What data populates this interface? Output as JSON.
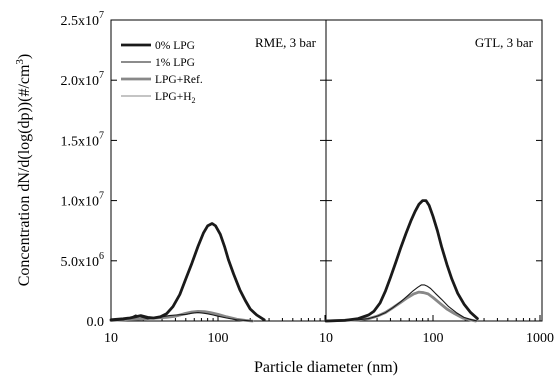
{
  "chart_data": {
    "type": "line",
    "xlabel": "Particle diameter (nm)",
    "ylabel": "Concentration dN/d(log(dp))(#/cm",
    "ylabel_sup": "3",
    "ylabel_end": ")",
    "xscale": "log",
    "xlim": [
      10,
      1000
    ],
    "ylim": [
      0,
      25000000
    ],
    "grid": false,
    "legend_position": "top-left",
    "y_ticks": [
      {
        "value": 0,
        "mant": "0.0",
        "exp": ""
      },
      {
        "value": 5000000,
        "mant": "5.0x10",
        "exp": "6"
      },
      {
        "value": 10000000,
        "mant": "1.0x10",
        "exp": "7"
      },
      {
        "value": 15000000,
        "mant": "1.5x10",
        "exp": "7"
      },
      {
        "value": 20000000,
        "mant": "2.0x10",
        "exp": "7"
      },
      {
        "value": 25000000,
        "mant": "2.5x10",
        "exp": "7"
      }
    ],
    "x_tick_labels": {
      "left": [
        {
          "value": 10,
          "text": "10"
        },
        {
          "value": 100,
          "text": "100"
        }
      ],
      "right": [
        {
          "value": 10,
          "text": "10"
        },
        {
          "value": 100,
          "text": "100"
        },
        {
          "value": 1000,
          "text": "1000"
        }
      ]
    },
    "legend": [
      {
        "text": "0% LPG",
        "sub": "",
        "color": "#1a1a1a",
        "width": 2.8
      },
      {
        "text": "1% LPG",
        "sub": "",
        "color": "#1a1a1a",
        "width": 1.1
      },
      {
        "text": "LPG+Ref.",
        "sub": "",
        "color": "#888888",
        "width": 2.8
      },
      {
        "text": "LPG+H",
        "sub": "2",
        "color": "#888888",
        "width": 1.1
      }
    ],
    "panels": [
      {
        "label": "RME, 3 bar",
        "series": [
          {
            "name": "0% LPG",
            "x": [
              10,
              11,
              13,
              15,
              17,
              19,
              22,
              25,
              29,
              33,
              38,
              44,
              50,
              57,
              65,
              73,
              80,
              88,
              95,
              105,
              115,
              125,
              140,
              160,
              180,
              200,
              230,
              270
            ],
            "y": [
              100000,
              130000,
              180000,
              250000,
              350000,
              450000,
              300000,
              250000,
              350000,
              600000,
              1200000,
              2200000,
              3500000,
              4800000,
              6200000,
              7300000,
              7900000,
              8100000,
              7900000,
              7200000,
              6200000,
              5100000,
              3900000,
              2600000,
              1700000,
              1000000,
              500000,
              100000
            ]
          },
          {
            "name": "1% LPG",
            "x": [
              10,
              13,
              15,
              17,
              19,
              22,
              25,
              30,
              35,
              40,
              50,
              57,
              65,
              73,
              80,
              90,
              100,
              120,
              150,
              180,
              210
            ],
            "y": [
              0,
              80000,
              250000,
              500000,
              350000,
              180000,
              250000,
              350000,
              450000,
              500000,
              550000,
              650000,
              700000,
              650000,
              600000,
              500000,
              400000,
              250000,
              100000,
              50000,
              0
            ]
          },
          {
            "name": "LPG+Ref.",
            "x": [
              10,
              13,
              17,
              22,
              27,
              33,
              40,
              48,
              57,
              65,
              75,
              85,
              100,
              120,
              150,
              180,
              210
            ],
            "y": [
              50000,
              100000,
              150000,
              200000,
              250000,
              300000,
              400000,
              600000,
              750000,
              800000,
              780000,
              700000,
              550000,
              350000,
              150000,
              50000,
              0
            ]
          },
          {
            "name": "LPG+H2",
            "x": [
              10,
              13,
              17,
              22,
              27,
              33,
              40,
              48,
              57,
              65,
              75,
              85,
              100,
              120,
              150,
              180
            ],
            "y": [
              50000,
              90000,
              130000,
              180000,
              220000,
              280000,
              350000,
              500000,
              650000,
              700000,
              680000,
              620000,
              480000,
              300000,
              120000,
              0
            ]
          }
        ]
      },
      {
        "label": "GTL, 3 bar",
        "series": [
          {
            "name": "0% LPG",
            "x": [
              10,
              15,
              20,
              25,
              28,
              32,
              36,
              40,
              45,
              50,
              56,
              62,
              68,
              74,
              80,
              86,
              92,
              100,
              110,
              120,
              135,
              150,
              170,
              195,
              225,
              260
            ],
            "y": [
              0,
              50000,
              200000,
              500000,
              800000,
              1500000,
              2500000,
              3600000,
              4900000,
              6100000,
              7300000,
              8300000,
              9100000,
              9700000,
              10000000,
              10000000,
              9600000,
              8700000,
              7500000,
              6200000,
              4700000,
              3500000,
              2300000,
              1400000,
              700000,
              200000
            ]
          },
          {
            "name": "1% LPG",
            "x": [
              10,
              20,
              25,
              30,
              36,
              42,
              50,
              58,
              65,
              72,
              78,
              83,
              88,
              95,
              105,
              120,
              140,
              165,
              195,
              230,
              260
            ],
            "y": [
              0,
              100000,
              200000,
              400000,
              700000,
              1100000,
              1600000,
              2100000,
              2500000,
              2800000,
              3000000,
              3000000,
              2900000,
              2700000,
              2300000,
              1800000,
              1200000,
              700000,
              300000,
              100000,
              0
            ]
          },
          {
            "name": "LPG+Ref.",
            "x": [
              10,
              20,
              25,
              30,
              36,
              42,
              50,
              58,
              66,
              74,
              82,
              90,
              100,
              115,
              135,
              160,
              190,
              220,
              250
            ],
            "y": [
              0,
              100000,
              200000,
              400000,
              700000,
              1100000,
              1550000,
              1950000,
              2250000,
              2400000,
              2350000,
              2250000,
              1950000,
              1500000,
              1000000,
              600000,
              250000,
              100000,
              0
            ]
          },
          {
            "name": "LPG+H2",
            "x": [
              10,
              20,
              25,
              30,
              36,
              42,
              50,
              58,
              66,
              74,
              82,
              90,
              100,
              115,
              135,
              160,
              190,
              220,
              250
            ],
            "y": [
              0,
              100000,
              250000,
              450000,
              800000,
              1150000,
              1600000,
              2000000,
              2300000,
              2450000,
              2400000,
              2300000,
              2000000,
              1550000,
              1050000,
              650000,
              300000,
              100000,
              0
            ]
          }
        ]
      }
    ]
  }
}
